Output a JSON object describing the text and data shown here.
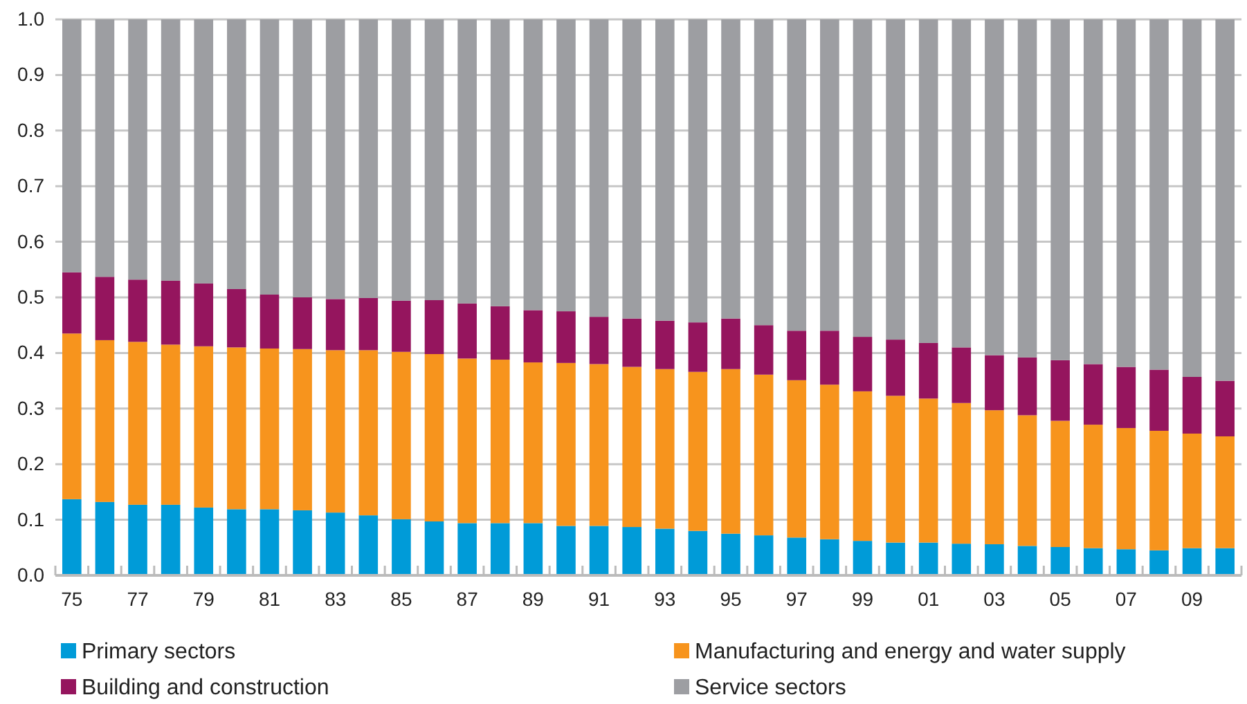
{
  "chart_data": {
    "type": "bar",
    "stacked": true,
    "categories": [
      "75",
      null,
      "77",
      null,
      "79",
      null,
      "81",
      null,
      "83",
      null,
      "85",
      null,
      "87",
      null,
      "89",
      null,
      "91",
      null,
      "93",
      null,
      "95",
      null,
      "97",
      null,
      "99",
      null,
      "01",
      null,
      "03",
      null,
      "05",
      null,
      "07",
      null,
      "09",
      null
    ],
    "series": [
      {
        "name": "Primary sectors",
        "color": "#009bd8",
        "values": [
          0.137,
          0.132,
          0.127,
          0.127,
          0.122,
          0.119,
          0.119,
          0.117,
          0.113,
          0.108,
          0.101,
          0.097,
          0.094,
          0.094,
          0.094,
          0.089,
          0.089,
          0.087,
          0.084,
          0.08,
          0.075,
          0.072,
          0.068,
          0.065,
          0.062,
          0.059,
          0.059,
          0.057,
          0.056,
          0.053,
          0.051,
          0.049,
          0.047,
          0.045,
          0.049,
          0.049
        ]
      },
      {
        "name": "Manufacturing and energy and water supply",
        "color": "#f7941d",
        "values": [
          0.298,
          0.291,
          0.293,
          0.288,
          0.29,
          0.291,
          0.289,
          0.29,
          0.292,
          0.297,
          0.301,
          0.301,
          0.296,
          0.294,
          0.289,
          0.293,
          0.291,
          0.288,
          0.287,
          0.286,
          0.296,
          0.289,
          0.283,
          0.278,
          0.269,
          0.264,
          0.259,
          0.253,
          0.241,
          0.235,
          0.227,
          0.222,
          0.218,
          0.215,
          0.206,
          0.201
        ]
      },
      {
        "name": "Building and construction",
        "color": "#95155e",
        "values": [
          0.11,
          0.114,
          0.112,
          0.115,
          0.113,
          0.105,
          0.097,
          0.093,
          0.092,
          0.094,
          0.092,
          0.097,
          0.099,
          0.096,
          0.094,
          0.093,
          0.085,
          0.087,
          0.087,
          0.089,
          0.091,
          0.089,
          0.089,
          0.097,
          0.098,
          0.101,
          0.1,
          0.1,
          0.099,
          0.104,
          0.109,
          0.109,
          0.11,
          0.11,
          0.102,
          0.1
        ]
      },
      {
        "name": "Service sectors",
        "color": "#9d9ea2",
        "values": [
          0.455,
          0.463,
          0.468,
          0.47,
          0.475,
          0.485,
          0.495,
          0.5,
          0.503,
          0.501,
          0.506,
          0.505,
          0.511,
          0.516,
          0.523,
          0.525,
          0.535,
          0.538,
          0.542,
          0.545,
          0.538,
          0.55,
          0.56,
          0.56,
          0.571,
          0.576,
          0.582,
          0.59,
          0.604,
          0.608,
          0.613,
          0.62,
          0.625,
          0.63,
          0.643,
          0.65
        ]
      }
    ],
    "ylim": [
      0,
      1
    ],
    "yticks": [
      {
        "value": 0,
        "label": "0.0"
      },
      0.1,
      0.2,
      0.3,
      0.4,
      0.5,
      0.6,
      0.7,
      0.8,
      0.9,
      {
        "value": 1,
        "label": "1.0"
      }
    ],
    "grid": "y",
    "legend": "bottom"
  }
}
